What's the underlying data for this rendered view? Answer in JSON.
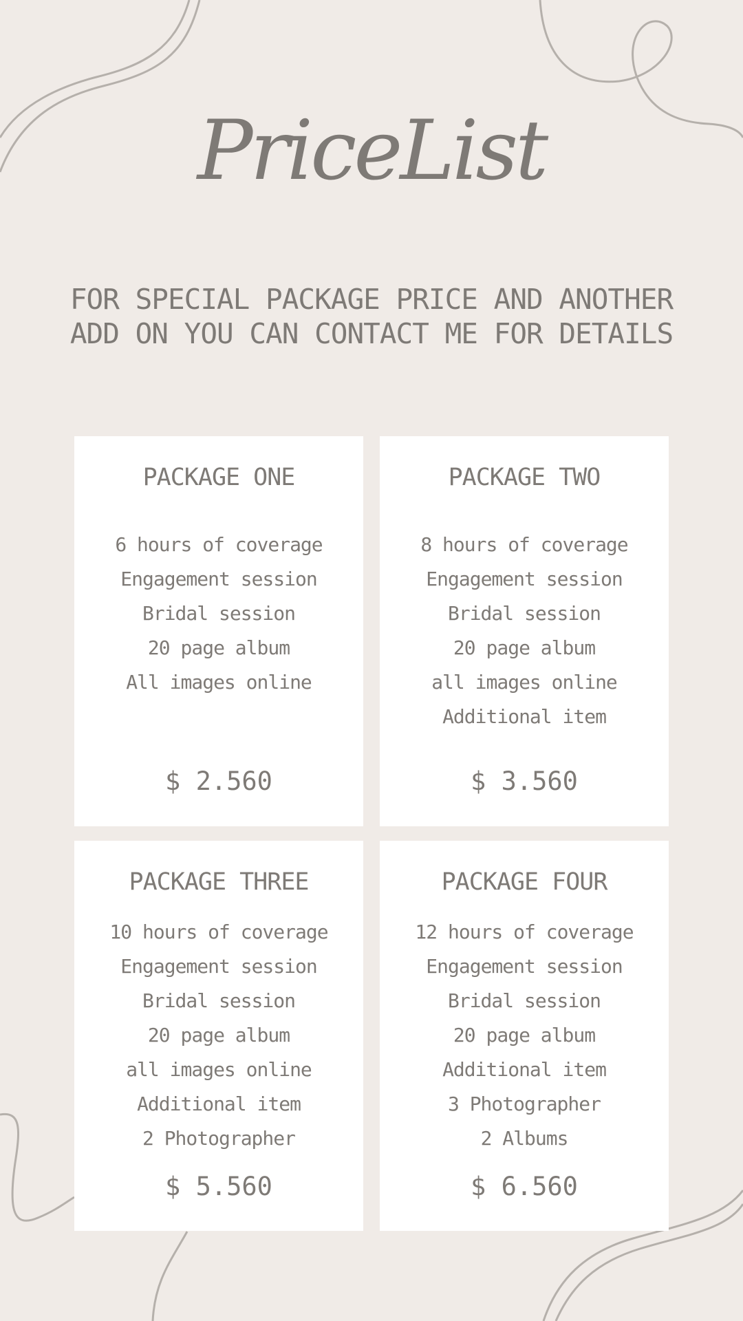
{
  "title": "PriceList",
  "subtitle": "FOR SPECIAL PACKAGE PRICE AND ANOTHER ADD ON YOU CAN CONTACT ME FOR DETAILS",
  "colors": {
    "background": "#f0ebe7",
    "card": "#ffffff",
    "text": "#7e7a76",
    "decoration": "#b5b0ab"
  },
  "packages": [
    {
      "name": "PACKAGE ONE",
      "items": [
        "6 hours of coverage",
        "Engagement session",
        "Bridal session",
        "20 page album",
        "All images online"
      ],
      "price": "$ 2.560"
    },
    {
      "name": "PACKAGE TWO",
      "items": [
        "8 hours of coverage",
        "Engagement session",
        "Bridal session",
        "20 page album",
        "all images online",
        "Additional item"
      ],
      "price": "$ 3.560"
    },
    {
      "name": "PACKAGE THREE",
      "items": [
        "10 hours of coverage",
        "Engagement session",
        "Bridal session",
        "20 page album",
        "all images online",
        "Additional item",
        "2 Photographer"
      ],
      "price": "$ 5.560"
    },
    {
      "name": "PACKAGE FOUR",
      "items": [
        "12 hours of coverage",
        "Engagement session",
        "Bridal session",
        "20 page album",
        "Additional item",
        "3 Photographer",
        "2 Albums"
      ],
      "price": "$ 6.560"
    }
  ]
}
